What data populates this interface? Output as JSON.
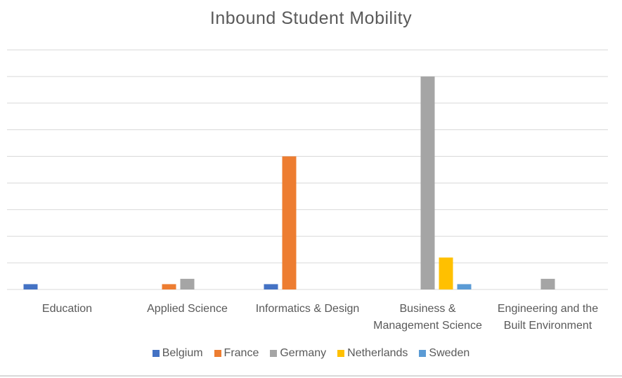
{
  "chart_data": {
    "type": "bar",
    "title": "Inbound Student Mobility",
    "categories": [
      [
        "Education"
      ],
      [
        "Applied Science"
      ],
      [
        "Informatics & Design"
      ],
      [
        "Business &",
        "Management Science"
      ],
      [
        "Engineering and the",
        "Built Environment"
      ]
    ],
    "series": [
      {
        "name": "Belgium",
        "color": "#4472C4",
        "values": [
          1,
          0,
          1,
          0,
          0
        ]
      },
      {
        "name": "France",
        "color": "#ED7D31",
        "values": [
          0,
          1,
          25,
          0,
          0
        ]
      },
      {
        "name": "Germany",
        "color": "#A5A5A5",
        "values": [
          0,
          2,
          0,
          40,
          2
        ]
      },
      {
        "name": "Netherlands",
        "color": "#FFC000",
        "values": [
          0,
          0,
          0,
          6,
          0
        ]
      },
      {
        "name": "Sweden",
        "color": "#5B9BD5",
        "values": [
          0,
          0,
          0,
          1,
          0
        ]
      }
    ],
    "ylim": [
      0,
      45
    ],
    "grid": true,
    "legend_position": "bottom"
  }
}
